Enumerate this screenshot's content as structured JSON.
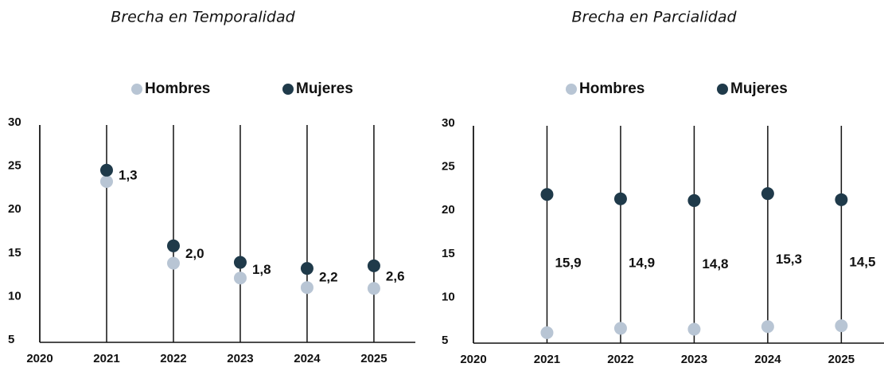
{
  "chart_data": [
    {
      "type": "dot",
      "title": "Brecha en Temporalidad",
      "x": [
        2021,
        2022,
        2023,
        2024,
        2025
      ],
      "series": [
        {
          "name": "Hombres",
          "color": "#b8c5d4",
          "values": [
            23.5,
            14.1,
            12.4,
            11.3,
            11.2
          ]
        },
        {
          "name": "Mujeres",
          "color": "#1f3a4a",
          "values": [
            24.8,
            16.1,
            14.2,
            13.5,
            13.8
          ]
        }
      ],
      "gaps": [
        1.3,
        2.0,
        1.8,
        2.2,
        2.6
      ],
      "gap_labels": [
        "1,3",
        "2,0",
        "1,8",
        "2,2",
        "2,6"
      ],
      "xlim": [
        2020,
        2025.62
      ],
      "xticks": [
        2020,
        2021,
        2022,
        2023,
        2024,
        2025
      ],
      "ylim": [
        5,
        30
      ],
      "yticks": [
        5,
        10,
        15,
        20,
        25,
        30
      ],
      "grid": "x",
      "legend": "top"
    },
    {
      "type": "dumbbell",
      "title": "Brecha en Parcialidad",
      "x": [
        2021,
        2022,
        2023,
        2024,
        2025
      ],
      "series": [
        {
          "name": "Hombres",
          "color": "#b8c5d4",
          "values": [
            6.2,
            6.7,
            6.6,
            6.9,
            7.0
          ]
        },
        {
          "name": "Mujeres",
          "color": "#1f3a4a",
          "values": [
            22.1,
            21.6,
            21.4,
            22.2,
            21.5
          ]
        }
      ],
      "gaps": [
        15.9,
        14.9,
        14.8,
        15.3,
        14.5
      ],
      "gap_labels": [
        "15,9",
        "14,9",
        "14,8",
        "15,3",
        "14,5"
      ],
      "xlim": [
        2020,
        2025.58
      ],
      "xticks": [
        2020,
        2021,
        2022,
        2023,
        2024,
        2025
      ],
      "ylim": [
        5,
        30
      ],
      "yticks": [
        5,
        10,
        15,
        20,
        25,
        30
      ],
      "grid": "x",
      "legend": "top"
    }
  ]
}
